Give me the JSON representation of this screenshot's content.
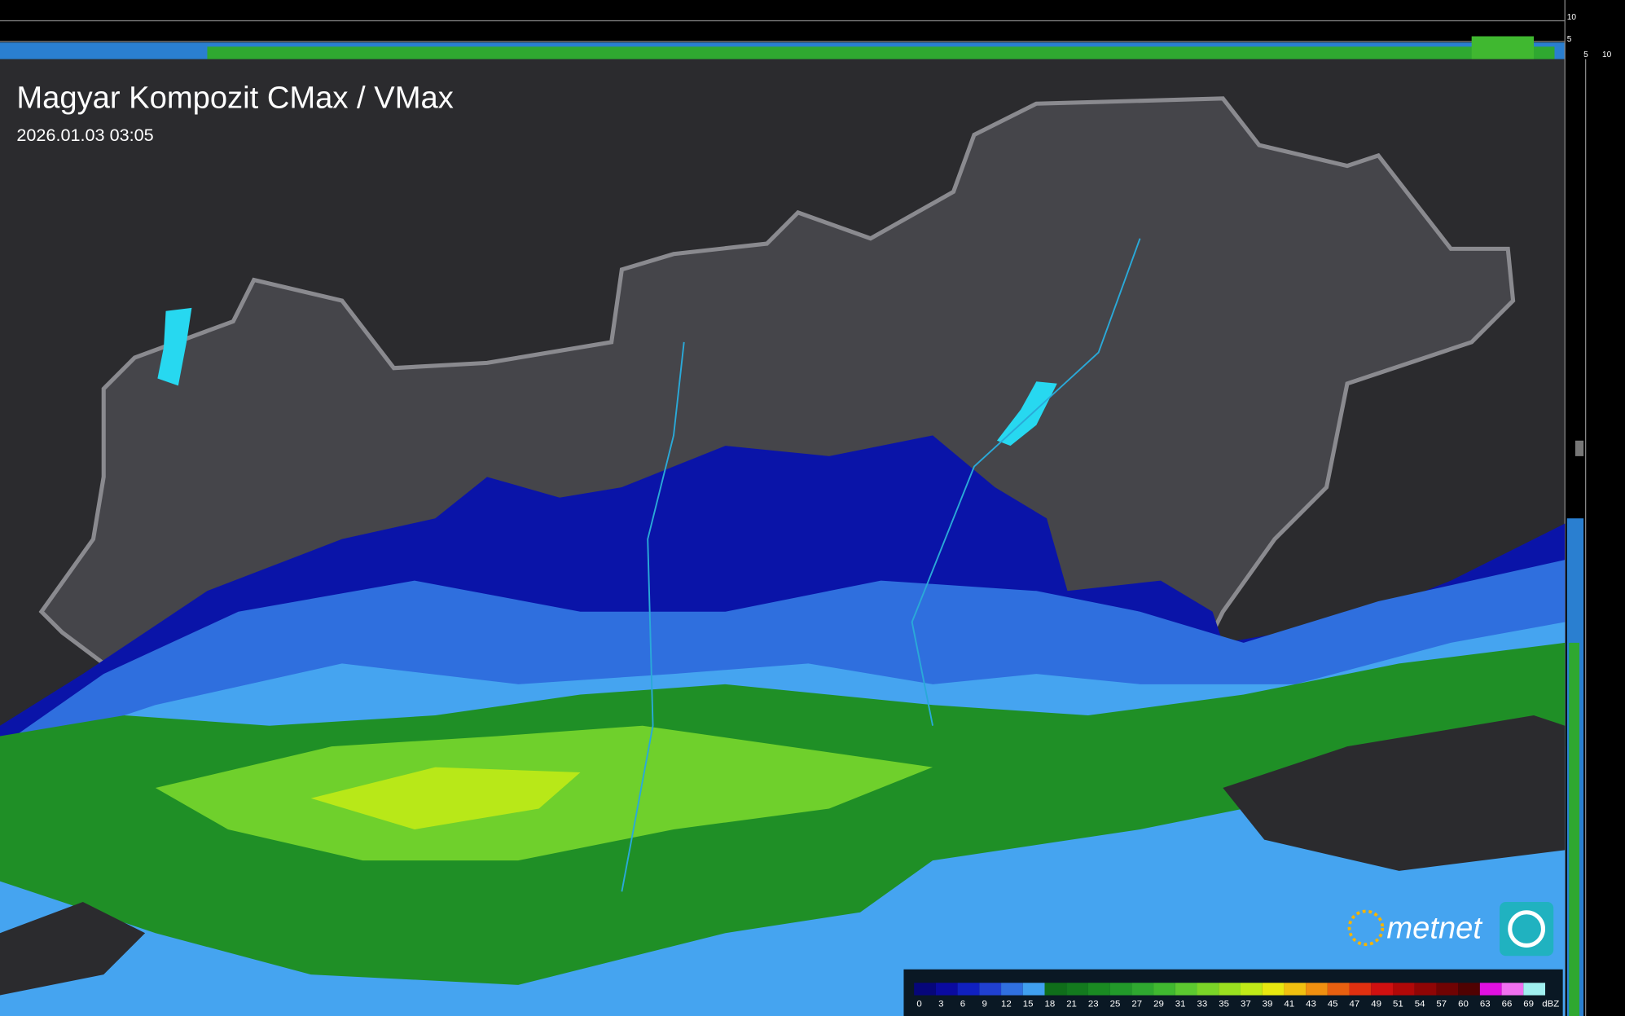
{
  "header": {
    "title": "Magyar Kompozit CMax / VMax",
    "timestamp": "2026.01.03 03:05"
  },
  "side_scale": {
    "top_labels": [
      "10",
      "5"
    ],
    "right_labels": [
      "5",
      "10"
    ]
  },
  "logo": {
    "text": "metnet"
  },
  "legend": {
    "labels": [
      0,
      3,
      6,
      9,
      12,
      15,
      18,
      21,
      23,
      25,
      27,
      29,
      31,
      33,
      35,
      37,
      39,
      41,
      43,
      45,
      47,
      49,
      51,
      54,
      57,
      60,
      63,
      66,
      69
    ],
    "unit": "dBZ",
    "colors": [
      "#06067a",
      "#0a0aa0",
      "#1020c0",
      "#2040d0",
      "#3070e0",
      "#40a0f0",
      "#0f6e1a",
      "#137a1e",
      "#1a8a22",
      "#22992a",
      "#2fa830",
      "#40b830",
      "#5cc830",
      "#7ad428",
      "#9ae020",
      "#c0ea18",
      "#e8e810",
      "#f0c010",
      "#f09010",
      "#e86010",
      "#e03010",
      "#d01010",
      "#b00808",
      "#900505",
      "#700303",
      "#500202",
      "#e010e0",
      "#f070f0",
      "#a0f0f0"
    ]
  }
}
